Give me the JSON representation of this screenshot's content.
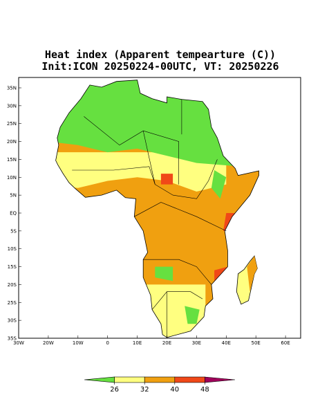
{
  "header": {
    "title": "Heat index (Apparent tempearture (C))",
    "subtitle": "Init:ICON 20250224-00UTC, VT: 20250226"
  },
  "map": {
    "lat_labels": [
      "35N",
      "30N",
      "25N",
      "20N",
      "15N",
      "10N",
      "5N",
      "EQ",
      "5S",
      "10S",
      "15S",
      "20S",
      "25S",
      "30S",
      "35S"
    ],
    "lon_labels": [
      "30W",
      "20W",
      "10W",
      "0",
      "10E",
      "20E",
      "30E",
      "40E",
      "50E",
      "60E"
    ]
  },
  "colorbar": {
    "levels": [
      26,
      32,
      40,
      48
    ],
    "colors": [
      "#66e040",
      "#ffff80",
      "#f0a010",
      "#f04818",
      "#a0005a"
    ]
  }
}
